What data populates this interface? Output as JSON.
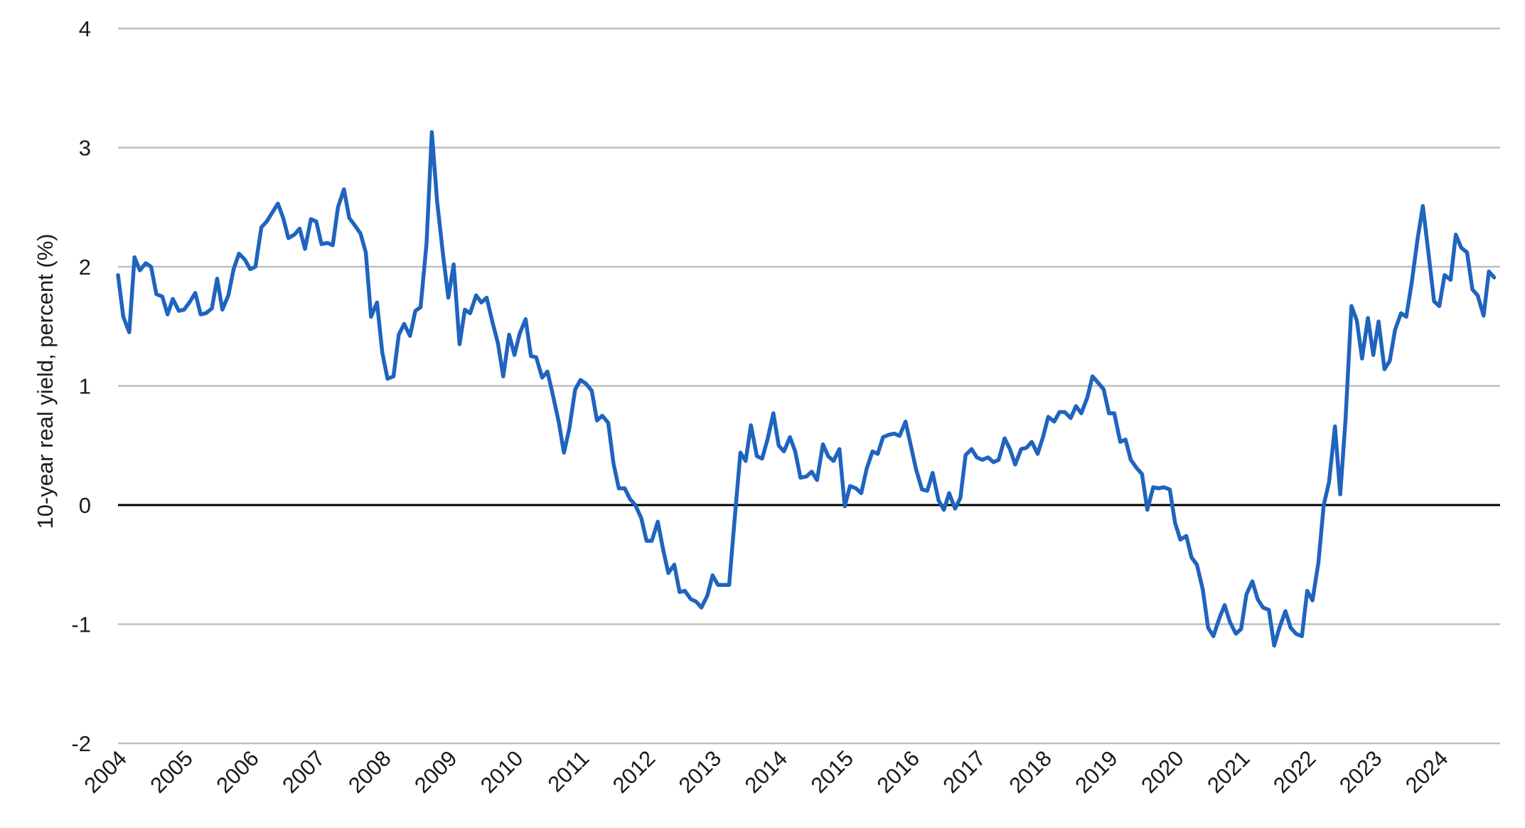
{
  "colors": {
    "series": "#1F64BE",
    "grid": "#BFBFBF",
    "zero_line": "#000000",
    "text": "#1A1A1A"
  },
  "chart_data": {
    "type": "line",
    "title": "",
    "xlabel": "",
    "ylabel": "10-year real yield, percent (%)",
    "ylim": [
      -2,
      4
    ],
    "xlim": [
      2004.0,
      2024.92
    ],
    "y_ticks": [
      "4",
      "3",
      "2",
      "1",
      "0",
      "-1",
      "-2"
    ],
    "x_ticks": [
      "2004",
      "2005",
      "2006",
      "2007",
      "2008",
      "2009",
      "2010",
      "2011",
      "2012",
      "2013",
      "2014",
      "2015",
      "2016",
      "2017",
      "2018",
      "2019",
      "2020",
      "2021",
      "2022",
      "2023",
      "2024"
    ],
    "grid": "horizontal",
    "zero_line": true,
    "series": [
      {
        "points": [
          [
            2004.0,
            1.93
          ],
          [
            2004.08,
            1.58
          ],
          [
            2004.17,
            1.45
          ],
          [
            2004.25,
            2.08
          ],
          [
            2004.33,
            1.97
          ],
          [
            2004.42,
            2.03
          ],
          [
            2004.5,
            2.0
          ],
          [
            2004.58,
            1.77
          ],
          [
            2004.67,
            1.75
          ],
          [
            2004.75,
            1.6
          ],
          [
            2004.83,
            1.73
          ],
          [
            2004.92,
            1.63
          ],
          [
            2005.0,
            1.64
          ],
          [
            2005.08,
            1.7
          ],
          [
            2005.17,
            1.78
          ],
          [
            2005.25,
            1.6
          ],
          [
            2005.33,
            1.61
          ],
          [
            2005.42,
            1.65
          ],
          [
            2005.5,
            1.9
          ],
          [
            2005.58,
            1.64
          ],
          [
            2005.67,
            1.76
          ],
          [
            2005.75,
            1.98
          ],
          [
            2005.83,
            2.11
          ],
          [
            2005.92,
            2.06
          ],
          [
            2006.0,
            1.98
          ],
          [
            2006.08,
            2.0
          ],
          [
            2006.17,
            2.33
          ],
          [
            2006.25,
            2.38
          ],
          [
            2006.33,
            2.45
          ],
          [
            2006.42,
            2.53
          ],
          [
            2006.5,
            2.41
          ],
          [
            2006.58,
            2.24
          ],
          [
            2006.67,
            2.27
          ],
          [
            2006.75,
            2.32
          ],
          [
            2006.83,
            2.15
          ],
          [
            2006.92,
            2.4
          ],
          [
            2007.0,
            2.38
          ],
          [
            2007.08,
            2.19
          ],
          [
            2007.17,
            2.2
          ],
          [
            2007.25,
            2.18
          ],
          [
            2007.33,
            2.5
          ],
          [
            2007.42,
            2.65
          ],
          [
            2007.5,
            2.41
          ],
          [
            2007.58,
            2.35
          ],
          [
            2007.67,
            2.28
          ],
          [
            2007.75,
            2.12
          ],
          [
            2007.83,
            1.58
          ],
          [
            2007.92,
            1.7
          ],
          [
            2008.0,
            1.28
          ],
          [
            2008.08,
            1.06
          ],
          [
            2008.17,
            1.08
          ],
          [
            2008.25,
            1.43
          ],
          [
            2008.33,
            1.52
          ],
          [
            2008.42,
            1.42
          ],
          [
            2008.5,
            1.63
          ],
          [
            2008.58,
            1.66
          ],
          [
            2008.67,
            2.2
          ],
          [
            2008.75,
            3.13
          ],
          [
            2008.83,
            2.55
          ],
          [
            2008.92,
            2.1
          ],
          [
            2009.0,
            1.74
          ],
          [
            2009.08,
            2.02
          ],
          [
            2009.17,
            1.35
          ],
          [
            2009.25,
            1.64
          ],
          [
            2009.33,
            1.61
          ],
          [
            2009.42,
            1.76
          ],
          [
            2009.5,
            1.7
          ],
          [
            2009.58,
            1.74
          ],
          [
            2009.67,
            1.53
          ],
          [
            2009.75,
            1.36
          ],
          [
            2009.83,
            1.08
          ],
          [
            2009.92,
            1.43
          ],
          [
            2010.0,
            1.26
          ],
          [
            2010.08,
            1.44
          ],
          [
            2010.17,
            1.56
          ],
          [
            2010.25,
            1.25
          ],
          [
            2010.33,
            1.24
          ],
          [
            2010.42,
            1.07
          ],
          [
            2010.5,
            1.12
          ],
          [
            2010.58,
            0.93
          ],
          [
            2010.67,
            0.7
          ],
          [
            2010.75,
            0.44
          ],
          [
            2010.83,
            0.64
          ],
          [
            2010.92,
            0.97
          ],
          [
            2011.0,
            1.05
          ],
          [
            2011.08,
            1.02
          ],
          [
            2011.17,
            0.96
          ],
          [
            2011.25,
            0.71
          ],
          [
            2011.33,
            0.75
          ],
          [
            2011.42,
            0.69
          ],
          [
            2011.5,
            0.35
          ],
          [
            2011.58,
            0.14
          ],
          [
            2011.67,
            0.14
          ],
          [
            2011.75,
            0.05
          ],
          [
            2011.83,
            0.0
          ],
          [
            2011.92,
            -0.11
          ],
          [
            2012.0,
            -0.3
          ],
          [
            2012.08,
            -0.3
          ],
          [
            2012.17,
            -0.14
          ],
          [
            2012.25,
            -0.37
          ],
          [
            2012.33,
            -0.57
          ],
          [
            2012.42,
            -0.5
          ],
          [
            2012.5,
            -0.73
          ],
          [
            2012.58,
            -0.72
          ],
          [
            2012.67,
            -0.79
          ],
          [
            2012.75,
            -0.81
          ],
          [
            2012.83,
            -0.86
          ],
          [
            2012.92,
            -0.76
          ],
          [
            2013.0,
            -0.59
          ],
          [
            2013.08,
            -0.67
          ],
          [
            2013.17,
            -0.67
          ],
          [
            2013.25,
            -0.67
          ],
          [
            2013.33,
            -0.14
          ],
          [
            2013.42,
            0.44
          ],
          [
            2013.5,
            0.37
          ],
          [
            2013.58,
            0.67
          ],
          [
            2013.67,
            0.41
          ],
          [
            2013.75,
            0.39
          ],
          [
            2013.83,
            0.55
          ],
          [
            2013.92,
            0.77
          ],
          [
            2014.0,
            0.5
          ],
          [
            2014.08,
            0.45
          ],
          [
            2014.17,
            0.57
          ],
          [
            2014.25,
            0.45
          ],
          [
            2014.33,
            0.23
          ],
          [
            2014.42,
            0.24
          ],
          [
            2014.5,
            0.28
          ],
          [
            2014.58,
            0.21
          ],
          [
            2014.67,
            0.51
          ],
          [
            2014.75,
            0.41
          ],
          [
            2014.83,
            0.37
          ],
          [
            2014.92,
            0.47
          ],
          [
            2015.0,
            -0.01
          ],
          [
            2015.08,
            0.16
          ],
          [
            2015.17,
            0.14
          ],
          [
            2015.25,
            0.1
          ],
          [
            2015.33,
            0.3
          ],
          [
            2015.42,
            0.45
          ],
          [
            2015.5,
            0.43
          ],
          [
            2015.58,
            0.57
          ],
          [
            2015.67,
            0.59
          ],
          [
            2015.75,
            0.6
          ],
          [
            2015.83,
            0.58
          ],
          [
            2015.92,
            0.7
          ],
          [
            2016.0,
            0.5
          ],
          [
            2016.08,
            0.3
          ],
          [
            2016.17,
            0.13
          ],
          [
            2016.25,
            0.12
          ],
          [
            2016.33,
            0.27
          ],
          [
            2016.42,
            0.04
          ],
          [
            2016.5,
            -0.04
          ],
          [
            2016.58,
            0.1
          ],
          [
            2016.67,
            -0.03
          ],
          [
            2016.75,
            0.06
          ],
          [
            2016.83,
            0.42
          ],
          [
            2016.92,
            0.47
          ],
          [
            2017.0,
            0.4
          ],
          [
            2017.08,
            0.38
          ],
          [
            2017.17,
            0.4
          ],
          [
            2017.25,
            0.36
          ],
          [
            2017.33,
            0.38
          ],
          [
            2017.42,
            0.56
          ],
          [
            2017.5,
            0.47
          ],
          [
            2017.58,
            0.34
          ],
          [
            2017.67,
            0.47
          ],
          [
            2017.75,
            0.48
          ],
          [
            2017.83,
            0.53
          ],
          [
            2017.92,
            0.43
          ],
          [
            2018.0,
            0.57
          ],
          [
            2018.08,
            0.74
          ],
          [
            2018.17,
            0.7
          ],
          [
            2018.25,
            0.78
          ],
          [
            2018.33,
            0.78
          ],
          [
            2018.42,
            0.73
          ],
          [
            2018.5,
            0.83
          ],
          [
            2018.58,
            0.77
          ],
          [
            2018.67,
            0.9
          ],
          [
            2018.75,
            1.08
          ],
          [
            2018.83,
            1.03
          ],
          [
            2018.92,
            0.97
          ],
          [
            2019.0,
            0.77
          ],
          [
            2019.08,
            0.77
          ],
          [
            2019.17,
            0.53
          ],
          [
            2019.25,
            0.55
          ],
          [
            2019.33,
            0.38
          ],
          [
            2019.42,
            0.31
          ],
          [
            2019.5,
            0.26
          ],
          [
            2019.58,
            -0.04
          ],
          [
            2019.67,
            0.15
          ],
          [
            2019.75,
            0.14
          ],
          [
            2019.83,
            0.15
          ],
          [
            2019.92,
            0.13
          ],
          [
            2020.0,
            -0.15
          ],
          [
            2020.08,
            -0.29
          ],
          [
            2020.17,
            -0.26
          ],
          [
            2020.25,
            -0.44
          ],
          [
            2020.33,
            -0.5
          ],
          [
            2020.42,
            -0.71
          ],
          [
            2020.5,
            -1.03
          ],
          [
            2020.58,
            -1.1
          ],
          [
            2020.67,
            -0.95
          ],
          [
            2020.75,
            -0.84
          ],
          [
            2020.83,
            -0.98
          ],
          [
            2020.92,
            -1.08
          ],
          [
            2021.0,
            -1.04
          ],
          [
            2021.08,
            -0.75
          ],
          [
            2021.17,
            -0.64
          ],
          [
            2021.25,
            -0.79
          ],
          [
            2021.33,
            -0.86
          ],
          [
            2021.42,
            -0.88
          ],
          [
            2021.5,
            -1.18
          ],
          [
            2021.58,
            -1.03
          ],
          [
            2021.67,
            -0.89
          ],
          [
            2021.75,
            -1.03
          ],
          [
            2021.83,
            -1.08
          ],
          [
            2021.92,
            -1.1
          ],
          [
            2022.0,
            -0.72
          ],
          [
            2022.08,
            -0.8
          ],
          [
            2022.17,
            -0.48
          ],
          [
            2022.25,
            0.0
          ],
          [
            2022.33,
            0.19
          ],
          [
            2022.42,
            0.66
          ],
          [
            2022.5,
            0.09
          ],
          [
            2022.58,
            0.72
          ],
          [
            2022.67,
            1.67
          ],
          [
            2022.75,
            1.55
          ],
          [
            2022.83,
            1.23
          ],
          [
            2022.92,
            1.57
          ],
          [
            2023.0,
            1.26
          ],
          [
            2023.08,
            1.54
          ],
          [
            2023.17,
            1.14
          ],
          [
            2023.25,
            1.21
          ],
          [
            2023.33,
            1.47
          ],
          [
            2023.42,
            1.61
          ],
          [
            2023.5,
            1.58
          ],
          [
            2023.58,
            1.86
          ],
          [
            2023.67,
            2.23
          ],
          [
            2023.75,
            2.51
          ],
          [
            2023.83,
            2.14
          ],
          [
            2023.92,
            1.71
          ],
          [
            2024.0,
            1.67
          ],
          [
            2024.08,
            1.93
          ],
          [
            2024.17,
            1.89
          ],
          [
            2024.25,
            2.27
          ],
          [
            2024.33,
            2.16
          ],
          [
            2024.42,
            2.12
          ],
          [
            2024.5,
            1.81
          ],
          [
            2024.58,
            1.76
          ],
          [
            2024.67,
            1.59
          ],
          [
            2024.75,
            1.96
          ],
          [
            2024.83,
            1.91
          ]
        ]
      }
    ]
  }
}
